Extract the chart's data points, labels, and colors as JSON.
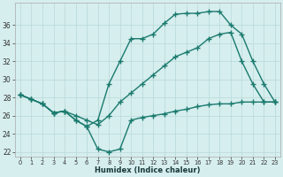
{
  "xlabel": "Humidex (Indice chaleur)",
  "color": "#1a7a6e",
  "bg_color": "#d6eeee",
  "grid_color": "#b8d8d8",
  "ylim_min": 21.5,
  "ylim_max": 38.5,
  "yticks": [
    22,
    24,
    26,
    28,
    30,
    32,
    34,
    36
  ],
  "xticks": [
    0,
    1,
    2,
    3,
    4,
    5,
    6,
    7,
    8,
    9,
    10,
    11,
    12,
    13,
    14,
    15,
    16,
    17,
    18,
    19,
    20,
    21,
    22,
    23
  ],
  "markersize": 2.5,
  "linewidth": 1.0,
  "s1_y": [
    28.3,
    27.8,
    27.3,
    26.3,
    26.5,
    25.5,
    24.8,
    25.5,
    29.5,
    32.0,
    34.5,
    34.5,
    35.0,
    36.2,
    37.2,
    37.3,
    37.3,
    37.5,
    37.5,
    36.0,
    35.0,
    32.0,
    29.5,
    27.5
  ],
  "s2_y": [
    28.3,
    27.8,
    27.3,
    26.3,
    26.5,
    25.5,
    24.8,
    22.3,
    22.0,
    22.3,
    25.5,
    25.8,
    26.0,
    26.2,
    26.5,
    26.7,
    27.0,
    27.2,
    27.3,
    27.3,
    27.5,
    27.5,
    27.5,
    27.5
  ],
  "s3_y": [
    28.3,
    27.8,
    27.3,
    26.3,
    26.5,
    26.0,
    25.5,
    25.0,
    26.0,
    27.5,
    28.5,
    29.5,
    30.5,
    31.5,
    32.5,
    33.0,
    33.5,
    34.5,
    35.0,
    35.2,
    32.0,
    29.5,
    27.5,
    27.5
  ]
}
